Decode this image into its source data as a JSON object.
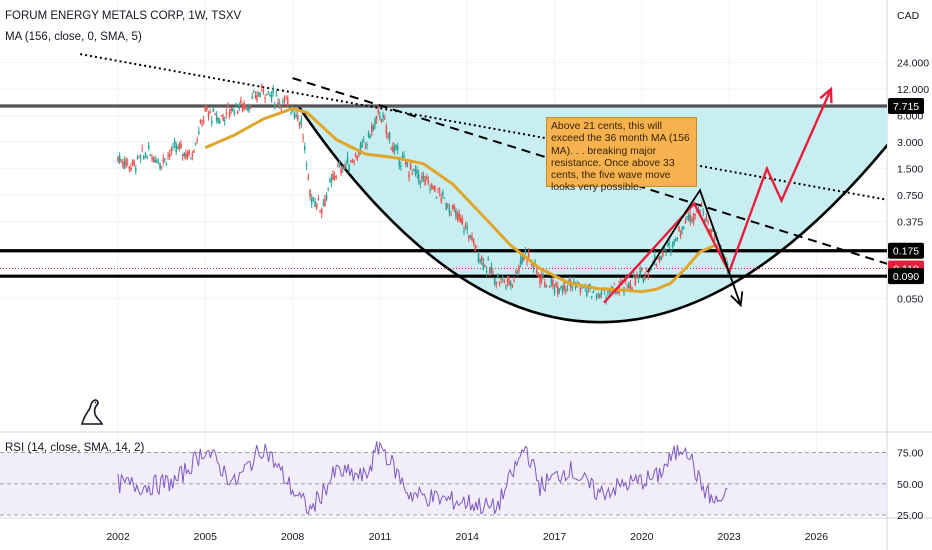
{
  "header": {
    "title": "FORUM ENERGY METALS CORP, 1W, TSXV",
    "ma_indicator": "MA (156, close, 0, SMA, 5)",
    "currency": "CAD"
  },
  "rsi_panel": {
    "label": "RSI (14, close, SMA, 14, 2)",
    "ticks": [
      "75.00",
      "50.00",
      "25.00"
    ]
  },
  "annotation": {
    "text": "Above 21 cents, this will exceed the 36 month MA (156 MA). . . breaking major resistance. Once above 33 cents, the five wave move looks very possible."
  },
  "chart_data": {
    "type": "line",
    "title": "FORUM ENERGY METALS CORP, 1W, TSXV",
    "y_scale": "log",
    "ylim": [
      0.03,
      35
    ],
    "xlim": [
      2000.4,
      2030.0
    ],
    "x_ticks": [
      "2002",
      "2005",
      "2008",
      "2011",
      "2014",
      "2017",
      "2020",
      "2023",
      "2026"
    ],
    "y_ticks": [
      "24.000",
      "12.000",
      "6.000",
      "3.000",
      "1.500",
      "0.750",
      "0.375",
      "0.050"
    ],
    "price_labels": [
      {
        "label": "7.715",
        "value": 7.715,
        "color": "#000000"
      },
      {
        "label": "0.175",
        "value": 0.175,
        "color": "#000000"
      },
      {
        "label": "0.110",
        "value": 0.11,
        "color": "#e91e3a"
      },
      {
        "label": "0.090",
        "value": 0.09,
        "color": "#000000"
      }
    ],
    "price_series": {
      "x": [
        2002.0,
        2002.5,
        2003.0,
        2003.5,
        2004.0,
        2004.5,
        2005.0,
        2005.5,
        2006.0,
        2006.5,
        2007.0,
        2007.5,
        2008.0,
        2008.3,
        2008.6,
        2009.0,
        2009.5,
        2010.0,
        2010.5,
        2011.0,
        2011.5,
        2012.0,
        2012.5,
        2013.0,
        2013.5,
        2014.0,
        2014.5,
        2015.0,
        2015.5,
        2016.0,
        2016.5,
        2017.0,
        2017.5,
        2018.0,
        2018.5,
        2019.0,
        2019.5,
        2020.0,
        2020.5,
        2021.0,
        2021.5,
        2022.0,
        2022.5,
        2023.0
      ],
      "y": [
        2.0,
        1.6,
        2.3,
        1.8,
        2.6,
        2.1,
        6.5,
        5.5,
        7.5,
        8.0,
        12.0,
        9.0,
        7.5,
        5.0,
        0.75,
        0.55,
        1.4,
        1.8,
        2.8,
        6.5,
        2.4,
        1.5,
        1.1,
        0.8,
        0.5,
        0.3,
        0.14,
        0.085,
        0.075,
        0.17,
        0.09,
        0.07,
        0.075,
        0.065,
        0.055,
        0.06,
        0.07,
        0.09,
        0.14,
        0.2,
        0.38,
        0.55,
        0.25,
        0.11
      ]
    },
    "ma_series": {
      "name": "MA (156)",
      "color": "#e0a62a",
      "x": [
        2005.0,
        2006.0,
        2007.0,
        2008.0,
        2008.5,
        2009.5,
        2010.5,
        2011.5,
        2012.5,
        2013.5,
        2014.5,
        2015.5,
        2016.5,
        2017.5,
        2018.5,
        2019.5,
        2020.0,
        2020.5,
        2021.0,
        2021.5,
        2022.0,
        2022.5
      ],
      "y": [
        2.6,
        3.6,
        5.5,
        7.2,
        6.5,
        3.2,
        2.2,
        2.0,
        1.7,
        1.0,
        0.45,
        0.2,
        0.11,
        0.075,
        0.065,
        0.062,
        0.06,
        0.064,
        0.075,
        0.11,
        0.17,
        0.2
      ]
    },
    "rsi_series": {
      "name": "RSI (14)",
      "color": "#7e57c2",
      "ylim": [
        25,
        85
      ],
      "x": [
        2002.0,
        2003.0,
        2004.0,
        2005.0,
        2006.0,
        2007.0,
        2008.0,
        2008.6,
        2009.5,
        2010.5,
        2011.0,
        2012.0,
        2013.0,
        2014.0,
        2015.0,
        2016.0,
        2016.5,
        2017.5,
        2018.5,
        2019.5,
        2020.5,
        2021.0,
        2021.5,
        2022.0,
        2022.5,
        2023.0
      ],
      "y": [
        50,
        48,
        52,
        78,
        50,
        80,
        45,
        28,
        60,
        55,
        82,
        42,
        38,
        35,
        30,
        80,
        48,
        62,
        42,
        50,
        55,
        70,
        82,
        50,
        35,
        40
      ]
    },
    "levels": [
      {
        "value": 7.715,
        "color": "#555555",
        "style": "solid-thick"
      },
      {
        "value": 0.175,
        "color": "#000000",
        "style": "solid-thick"
      },
      {
        "value": 0.09,
        "color": "#000000",
        "style": "solid-thick"
      },
      {
        "value": 0.11,
        "color": "#e91e3a",
        "style": "dotted"
      }
    ],
    "cup_pattern": {
      "fill": "#c9eef2",
      "left_rim": {
        "x": 2008.2,
        "y": 7.715
      },
      "bottom": {
        "x": 2018.3,
        "y": 0.027
      },
      "right_rim": {
        "x": 2029.5,
        "y": 7.715
      }
    },
    "trend_lines": [
      {
        "style": "dotted",
        "color": "#000000",
        "from": {
          "x": 2000.7,
          "y": 30.0
        },
        "to": {
          "x": 2029.8,
          "y": 0.55
        }
      },
      {
        "style": "dashed",
        "color": "#000000",
        "from": {
          "x": 2008.0,
          "y": 16.0
        },
        "to": {
          "x": 2029.8,
          "y": 0.09
        }
      }
    ],
    "projection": {
      "color": "#e91e3a",
      "x": [
        2018.7,
        2021.8,
        2023.0,
        2024.3,
        2024.8,
        2026.5
      ],
      "y": [
        0.045,
        0.6,
        0.1,
        1.5,
        0.65,
        12.0
      ]
    },
    "dark_projection": {
      "color": "#000000",
      "x": [
        2020.2,
        2021.5,
        2022.0,
        2023.4
      ],
      "y": [
        0.1,
        0.48,
        0.85,
        0.042
      ]
    },
    "rsi_ticks": [
      75,
      50,
      25
    ]
  },
  "colors": {
    "accent_red": "#e91e3a",
    "ma_orange": "#e0a62a",
    "rsi_purple": "#7e57c2",
    "candle_up": "#26a69a",
    "candle_down": "#ef5350"
  },
  "icons": [
    "tradingview-dino-icon"
  ]
}
